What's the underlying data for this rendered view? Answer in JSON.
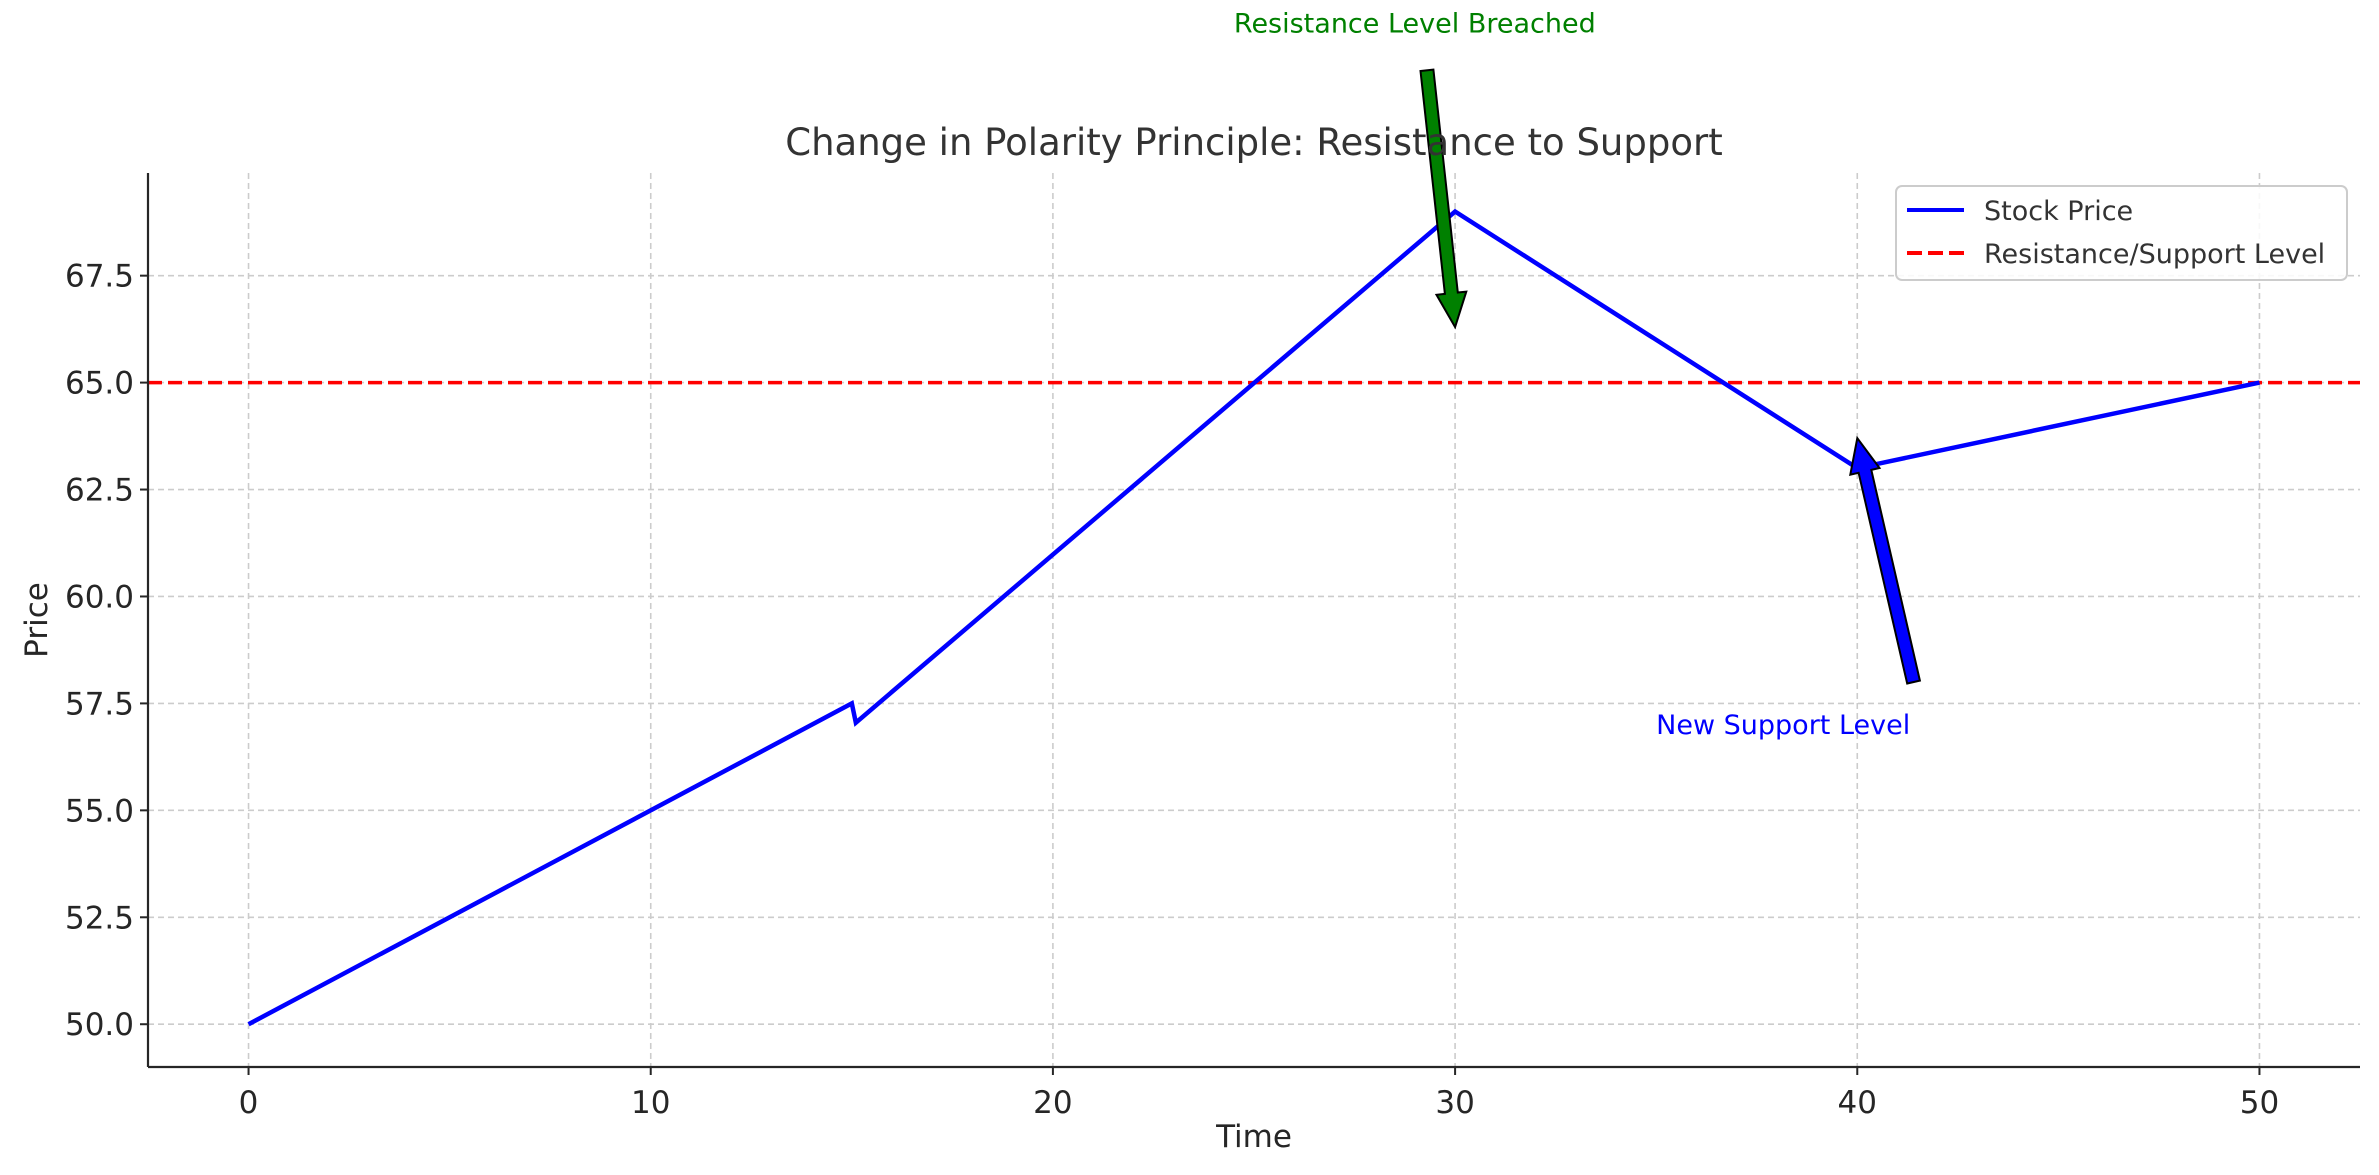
{
  "chart_data": {
    "type": "line",
    "title": "Change in Polarity Principle: Resistance to Support",
    "xlabel": "Time",
    "ylabel": "Price",
    "xlim": [
      -2.5,
      52.5
    ],
    "ylim": [
      49,
      69.9
    ],
    "x_ticks": [
      0,
      10,
      20,
      30,
      40,
      50
    ],
    "x_tick_labels": [
      "0",
      "10",
      "20",
      "30",
      "40",
      "50"
    ],
    "y_ticks": [
      50,
      52.5,
      55,
      57.5,
      60,
      62.5,
      65,
      67.5
    ],
    "y_tick_labels": [
      "50.0",
      "52.5",
      "55.0",
      "57.5",
      "60.0",
      "62.5",
      "65.0",
      "67.5"
    ],
    "grid": true,
    "legend_position": "top-right",
    "series": [
      {
        "name": "Stock Price",
        "color": "#0000ff",
        "style": "solid",
        "x": [
          0,
          15,
          15.1,
          30,
          40,
          50
        ],
        "y": [
          50,
          57.5,
          57.05,
          69,
          63,
          65
        ]
      }
    ],
    "hlines": [
      {
        "name": "Resistance/Support Level",
        "y": 65,
        "color": "#ff0000",
        "style": "dashed"
      }
    ],
    "annotations": [
      {
        "text": "Resistance Level Breached",
        "color": "#008000",
        "arrow_color": "#008000",
        "text_x": 24.5,
        "text_y": 73.4,
        "tail_x": 29.3,
        "tail_y": 72.3,
        "head_x": 30,
        "head_y": 66.3
      },
      {
        "text": "New Support Level",
        "color": "#0000ff",
        "arrow_color": "#0000ff",
        "text_x": 35,
        "text_y": 57,
        "tail_x": 41.4,
        "tail_y": 58,
        "head_x": 40,
        "head_y": 63.7
      }
    ]
  }
}
